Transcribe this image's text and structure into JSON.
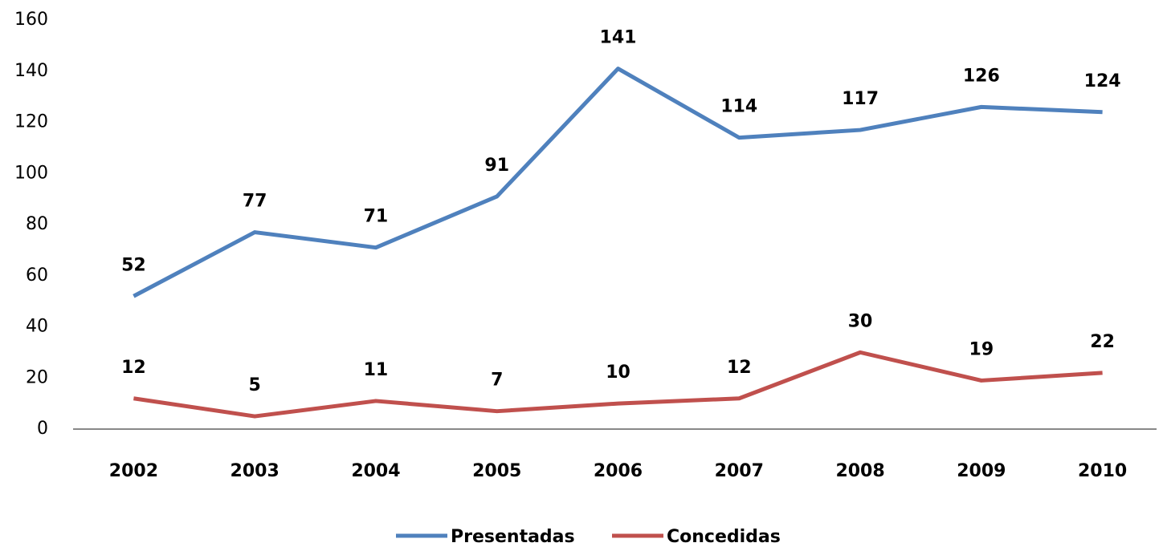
{
  "chart_data": {
    "type": "line",
    "categories": [
      "2002",
      "2003",
      "2004",
      "2005",
      "2006",
      "2007",
      "2008",
      "2009",
      "2010"
    ],
    "series": [
      {
        "name": "Presentadas",
        "color": "#4f81bd",
        "values": [
          52,
          77,
          71,
          91,
          141,
          114,
          117,
          126,
          124
        ]
      },
      {
        "name": "Concedidas",
        "color": "#c0504d",
        "values": [
          12,
          5,
          11,
          7,
          10,
          12,
          30,
          19,
          22
        ]
      }
    ],
    "ylim": [
      0,
      160
    ],
    "yticks": [
      0,
      20,
      40,
      60,
      80,
      100,
      120,
      140,
      160
    ],
    "grid": false,
    "legend": "bottom",
    "data_labels": true
  }
}
